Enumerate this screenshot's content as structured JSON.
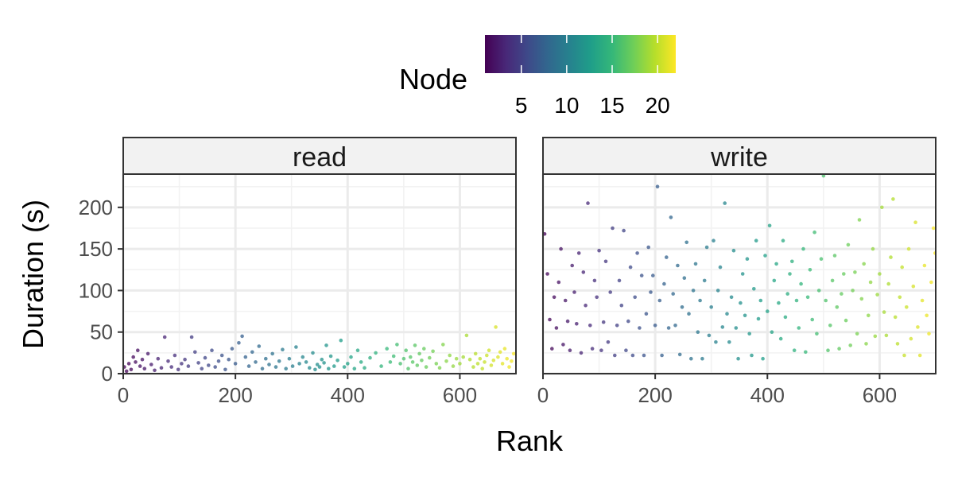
{
  "chart_data": {
    "type": "scatter",
    "xlabel": "Rank",
    "ylabel": "Duration (s)",
    "xlim": [
      0,
      700
    ],
    "ylim": [
      0,
      240
    ],
    "x_ticks": [
      0,
      200,
      400,
      600
    ],
    "y_ticks": [
      0,
      50,
      100,
      150,
      200
    ],
    "grid": true,
    "legend": {
      "title": "Node",
      "type": "colorbar",
      "position": "top",
      "range": [
        1,
        22
      ],
      "ticks": [
        5,
        10,
        15,
        20
      ],
      "colors": [
        "#440154",
        "#482878",
        "#3e4989",
        "#31688e",
        "#26828e",
        "#1f9e89",
        "#35b779",
        "#6ece58",
        "#b5de2b",
        "#fde725"
      ]
    },
    "nodes": 22,
    "ranks_per_node": 32,
    "panels": [
      {
        "name": "read",
        "points": [
          [
            2,
            8
          ],
          [
            6,
            3
          ],
          [
            10,
            12
          ],
          [
            14,
            5
          ],
          [
            18,
            20
          ],
          [
            22,
            14
          ],
          [
            26,
            28
          ],
          [
            30,
            9
          ],
          [
            34,
            17
          ],
          [
            38,
            6
          ],
          [
            44,
            24
          ],
          [
            50,
            11
          ],
          [
            56,
            4
          ],
          [
            62,
            18
          ],
          [
            68,
            7
          ],
          [
            74,
            44
          ],
          [
            80,
            15
          ],
          [
            86,
            8
          ],
          [
            92,
            22
          ],
          [
            98,
            5
          ],
          [
            104,
            12
          ],
          [
            110,
            17
          ],
          [
            116,
            9
          ],
          [
            122,
            44
          ],
          [
            128,
            26
          ],
          [
            134,
            13
          ],
          [
            140,
            6
          ],
          [
            146,
            19
          ],
          [
            152,
            10
          ],
          [
            158,
            28
          ],
          [
            164,
            8
          ],
          [
            170,
            15
          ],
          [
            176,
            22
          ],
          [
            182,
            5
          ],
          [
            188,
            17
          ],
          [
            194,
            30
          ],
          [
            200,
            12
          ],
          [
            206,
            37
          ],
          [
            212,
            45
          ],
          [
            218,
            20
          ],
          [
            224,
            9
          ],
          [
            230,
            26
          ],
          [
            236,
            14
          ],
          [
            242,
            33
          ],
          [
            248,
            6
          ],
          [
            254,
            18
          ],
          [
            260,
            11
          ],
          [
            266,
            24
          ],
          [
            272,
            8
          ],
          [
            278,
            15
          ],
          [
            284,
            29
          ],
          [
            290,
            6
          ],
          [
            296,
            18
          ],
          [
            302,
            9
          ],
          [
            308,
            32
          ],
          [
            314,
            12
          ],
          [
            320,
            20
          ],
          [
            326,
            14
          ],
          [
            332,
            7
          ],
          [
            338,
            25
          ],
          [
            342,
            5
          ],
          [
            346,
            11
          ],
          [
            350,
            8
          ],
          [
            354,
            17
          ],
          [
            358,
            13
          ],
          [
            362,
            34
          ],
          [
            366,
            6
          ],
          [
            370,
            21
          ],
          [
            376,
            9
          ],
          [
            382,
            16
          ],
          [
            388,
            40
          ],
          [
            394,
            8
          ],
          [
            400,
            12
          ],
          [
            406,
            20
          ],
          [
            412,
            6
          ],
          [
            418,
            28
          ],
          [
            424,
            14
          ],
          [
            430,
            7
          ],
          [
            440,
            19
          ],
          [
            450,
            25
          ],
          [
            460,
            9
          ],
          [
            470,
            30
          ],
          [
            476,
            14
          ],
          [
            482,
            21
          ],
          [
            488,
            35
          ],
          [
            494,
            12
          ],
          [
            500,
            18
          ],
          [
            504,
            28
          ],
          [
            508,
            6
          ],
          [
            512,
            20
          ],
          [
            516,
            14
          ],
          [
            520,
            34
          ],
          [
            524,
            10
          ],
          [
            528,
            24
          ],
          [
            532,
            16
          ],
          [
            536,
            30
          ],
          [
            540,
            8
          ],
          [
            546,
            19
          ],
          [
            552,
            27
          ],
          [
            558,
            12
          ],
          [
            564,
            7
          ],
          [
            570,
            35
          ],
          [
            576,
            15
          ],
          [
            582,
            22
          ],
          [
            588,
            9
          ],
          [
            594,
            18
          ],
          [
            600,
            12
          ],
          [
            606,
            20
          ],
          [
            612,
            46
          ],
          [
            618,
            17
          ],
          [
            624,
            8
          ],
          [
            628,
            24
          ],
          [
            632,
            12
          ],
          [
            636,
            18
          ],
          [
            640,
            6
          ],
          [
            644,
            14
          ],
          [
            648,
            22
          ],
          [
            652,
            28
          ],
          [
            656,
            10
          ],
          [
            660,
            16
          ],
          [
            664,
            56
          ],
          [
            668,
            20
          ],
          [
            672,
            26
          ],
          [
            676,
            12
          ],
          [
            680,
            30
          ],
          [
            684,
            18
          ],
          [
            688,
            8
          ],
          [
            692,
            15
          ],
          [
            696,
            24
          ]
        ]
      },
      {
        "name": "write",
        "points": [
          [
            3,
            168
          ],
          [
            8,
            120
          ],
          [
            12,
            65
          ],
          [
            16,
            30
          ],
          [
            20,
            92
          ],
          [
            24,
            55
          ],
          [
            28,
            110
          ],
          [
            32,
            150
          ],
          [
            36,
            35
          ],
          [
            40,
            88
          ],
          [
            44,
            63
          ],
          [
            48,
            28
          ],
          [
            52,
            130
          ],
          [
            56,
            98
          ],
          [
            60,
            60
          ],
          [
            64,
            145
          ],
          [
            68,
            25
          ],
          [
            72,
            122
          ],
          [
            76,
            82
          ],
          [
            80,
            205
          ],
          [
            84,
            58
          ],
          [
            88,
            30
          ],
          [
            92,
            112
          ],
          [
            96,
            92
          ],
          [
            100,
            148
          ],
          [
            104,
            28
          ],
          [
            108,
            62
          ],
          [
            112,
            135
          ],
          [
            116,
            38
          ],
          [
            120,
            98
          ],
          [
            124,
            175
          ],
          [
            128,
            22
          ],
          [
            132,
            58
          ],
          [
            136,
            112
          ],
          [
            140,
            82
          ],
          [
            144,
            172
          ],
          [
            148,
            28
          ],
          [
            152,
            63
          ],
          [
            156,
            128
          ],
          [
            160,
            22
          ],
          [
            164,
            92
          ],
          [
            168,
            145
          ],
          [
            172,
            55
          ],
          [
            176,
            118
          ],
          [
            180,
            22
          ],
          [
            184,
            72
          ],
          [
            188,
            152
          ],
          [
            192,
            98
          ],
          [
            196,
            118
          ],
          [
            200,
            58
          ],
          [
            204,
            225
          ],
          [
            208,
            88
          ],
          [
            212,
            22
          ],
          [
            216,
            108
          ],
          [
            220,
            140
          ],
          [
            224,
            55
          ],
          [
            228,
            188
          ],
          [
            232,
            96
          ],
          [
            236,
            58
          ],
          [
            240,
            130
          ],
          [
            244,
            23
          ],
          [
            248,
            80
          ],
          [
            252,
            115
          ],
          [
            256,
            158
          ],
          [
            260,
            72
          ],
          [
            264,
            18
          ],
          [
            268,
            100
          ],
          [
            272,
            132
          ],
          [
            276,
            50
          ],
          [
            280,
            88
          ],
          [
            284,
            18
          ],
          [
            288,
            112
          ],
          [
            292,
            152
          ],
          [
            296,
            46
          ],
          [
            300,
            80
          ],
          [
            304,
            160
          ],
          [
            308,
            38
          ],
          [
            312,
            100
          ],
          [
            316,
            128
          ],
          [
            320,
            56
          ],
          [
            324,
            205
          ],
          [
            328,
            72
          ],
          [
            332,
            38
          ],
          [
            336,
            92
          ],
          [
            340,
            148
          ],
          [
            344,
            55
          ],
          [
            348,
            18
          ],
          [
            352,
            85
          ],
          [
            356,
            120
          ],
          [
            360,
            70
          ],
          [
            364,
            138
          ],
          [
            368,
            48
          ],
          [
            372,
            22
          ],
          [
            376,
            102
          ],
          [
            380,
            160
          ],
          [
            384,
            66
          ],
          [
            388,
            88
          ],
          [
            392,
            18
          ],
          [
            396,
            142
          ],
          [
            400,
            75
          ],
          [
            404,
            178
          ],
          [
            408,
            50
          ],
          [
            412,
            112
          ],
          [
            416,
            132
          ],
          [
            420,
            85
          ],
          [
            424,
            42
          ],
          [
            428,
            160
          ],
          [
            432,
            68
          ],
          [
            436,
            96
          ],
          [
            440,
            120
          ],
          [
            444,
            135
          ],
          [
            448,
            28
          ],
          [
            452,
            88
          ],
          [
            456,
            55
          ],
          [
            460,
            108
          ],
          [
            464,
            150
          ],
          [
            468,
            26
          ],
          [
            472,
            92
          ],
          [
            476,
            125
          ],
          [
            480,
            65
          ],
          [
            484,
            170
          ],
          [
            488,
            48
          ],
          [
            492,
            100
          ],
          [
            496,
            138
          ],
          [
            500,
            238
          ],
          [
            504,
            88
          ],
          [
            508,
            28
          ],
          [
            512,
            58
          ],
          [
            516,
            112
          ],
          [
            520,
            142
          ],
          [
            524,
            80
          ],
          [
            528,
            30
          ],
          [
            532,
            96
          ],
          [
            536,
            120
          ],
          [
            540,
            64
          ],
          [
            544,
            155
          ],
          [
            548,
            34
          ],
          [
            552,
            100
          ],
          [
            556,
            122
          ],
          [
            560,
            48
          ],
          [
            564,
            185
          ],
          [
            568,
            90
          ],
          [
            572,
            132
          ],
          [
            576,
            36
          ],
          [
            580,
            70
          ],
          [
            584,
            110
          ],
          [
            588,
            150
          ],
          [
            592,
            45
          ],
          [
            596,
            95
          ],
          [
            600,
            120
          ],
          [
            604,
            200
          ],
          [
            608,
            74
          ],
          [
            612,
            46
          ],
          [
            616,
            108
          ],
          [
            620,
            140
          ],
          [
            624,
            210
          ],
          [
            628,
            68
          ],
          [
            632,
            36
          ],
          [
            636,
            92
          ],
          [
            640,
            128
          ],
          [
            644,
            22
          ],
          [
            648,
            80
          ],
          [
            652,
            150
          ],
          [
            656,
            42
          ],
          [
            660,
            105
          ],
          [
            664,
            182
          ],
          [
            668,
            56
          ],
          [
            672,
            22
          ],
          [
            676,
            88
          ],
          [
            680,
            130
          ],
          [
            684,
            70
          ],
          [
            688,
            48
          ],
          [
            692,
            110
          ],
          [
            696,
            175
          ],
          [
            699,
            145
          ]
        ]
      }
    ]
  }
}
